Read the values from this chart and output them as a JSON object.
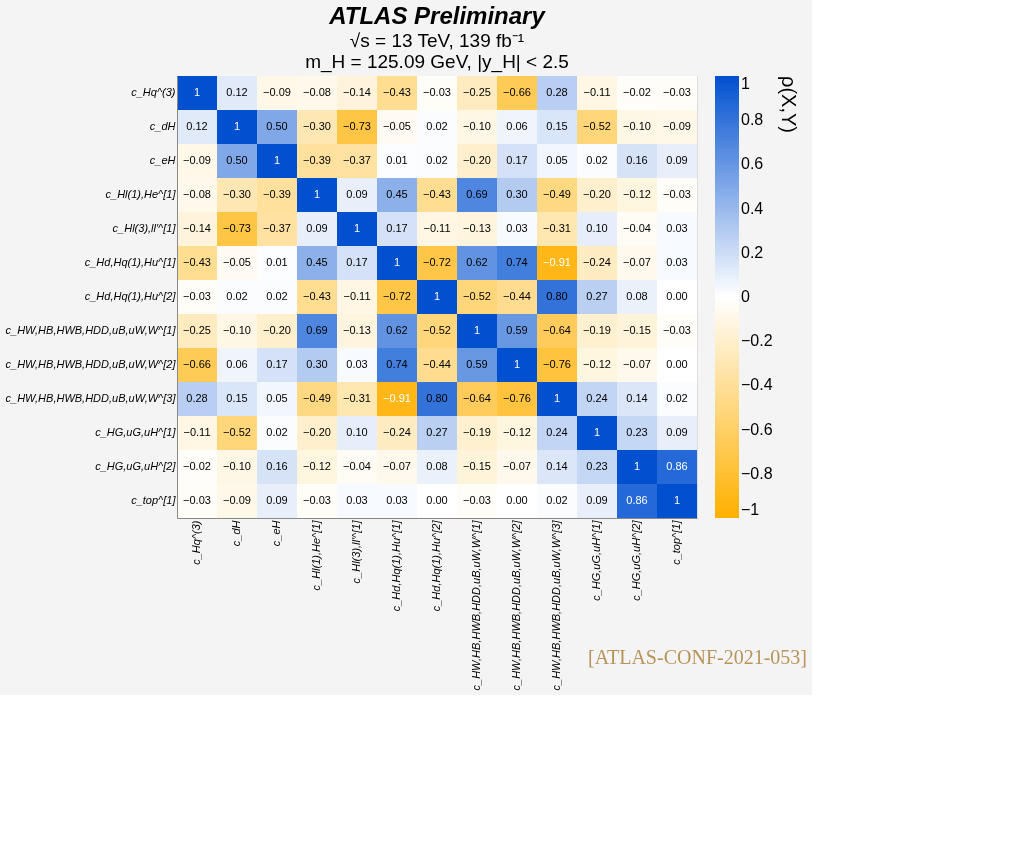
{
  "chart_data": {
    "type": "heatmap",
    "title": "ATLAS Preliminary",
    "subtitle": [
      "√s = 13 TeV, 139 fb⁻¹",
      "m_H = 125.09 GeV, |y_H| < 2.5"
    ],
    "clabel": "ρ(X,Y)",
    "annotations": [
      "[ATLAS-CONF-2021-053]"
    ],
    "categories": [
      "c_Hq^(3)",
      "c_dH",
      "c_eH",
      "c_Hl(1),He^[1]",
      "c_Hl(3),ll'^[1]",
      "c_Hd,Hq(1),Hu^[1]",
      "c_Hd,Hq(1),Hu^[2]",
      "c_HW,HB,HWB,HDD,uB,uW,W^[1]",
      "c_HW,HB,HWB,HDD,uB,uW,W^[2]",
      "c_HW,HB,HWB,HDD,uB,uW,W^[3]",
      "c_HG,uG,uH^[1]",
      "c_HG,uG,uH^[2]",
      "c_top^[1]"
    ],
    "y_categories": [
      "c_Hq^(3)",
      "c_dH",
      "c_eH",
      "c_Hl(1),He^[1]",
      "c_Hl(3),ll'^[1]",
      "c_Hd,Hq(1),Hu^[1]",
      "c_Hd,Hq(1),Hu^[2]",
      "c_HW,HB,HWB,HDD,uB,uW,W^[1]",
      "c_HW,HB,HWB,HDD,uB,uW,W^[2]",
      "c_HW,HB,HWB,HDD,uB,uW,W^[3]",
      "c_HG,uG,uH^[1]",
      "c_HG,uG,uH^[2]",
      "c_top^[1]"
    ],
    "cells": [
      [
        1,
        0.12,
        -0.09,
        -0.08,
        -0.14,
        -0.43,
        -0.03,
        -0.25,
        -0.66,
        0.28,
        -0.11,
        -0.02,
        -0.03
      ],
      [
        0.12,
        1,
        0.5,
        -0.3,
        -0.73,
        -0.05,
        0.02,
        -0.1,
        0.06,
        0.15,
        -0.52,
        -0.1,
        -0.09
      ],
      [
        -0.09,
        0.5,
        1,
        -0.39,
        -0.37,
        0.01,
        0.02,
        -0.2,
        0.17,
        0.05,
        0.02,
        0.16,
        0.09
      ],
      [
        -0.08,
        -0.3,
        -0.39,
        1,
        0.09,
        0.45,
        -0.43,
        0.69,
        0.3,
        -0.49,
        -0.2,
        -0.12,
        -0.03
      ],
      [
        -0.14,
        -0.73,
        -0.37,
        0.09,
        1,
        0.17,
        -0.11,
        -0.13,
        0.03,
        -0.31,
        0.1,
        -0.04,
        0.03
      ],
      [
        -0.43,
        -0.05,
        0.01,
        0.45,
        0.17,
        1,
        -0.72,
        0.62,
        0.74,
        -0.91,
        -0.24,
        -0.07,
        0.03
      ],
      [
        -0.03,
        0.02,
        0.02,
        -0.43,
        -0.11,
        -0.72,
        1,
        -0.52,
        -0.44,
        0.8,
        0.27,
        0.08,
        0.0
      ],
      [
        -0.25,
        -0.1,
        -0.2,
        0.69,
        -0.13,
        0.62,
        -0.52,
        1,
        0.59,
        -0.64,
        -0.19,
        -0.15,
        -0.03
      ],
      [
        -0.66,
        0.06,
        0.17,
        0.3,
        0.03,
        0.74,
        -0.44,
        0.59,
        1,
        -0.76,
        -0.12,
        -0.07,
        0.0
      ],
      [
        0.28,
        0.15,
        0.05,
        -0.49,
        -0.31,
        -0.91,
        0.8,
        -0.64,
        -0.76,
        1,
        0.24,
        0.14,
        0.02
      ],
      [
        -0.11,
        -0.52,
        0.02,
        -0.2,
        0.1,
        -0.24,
        0.27,
        -0.19,
        -0.12,
        0.24,
        1,
        0.23,
        0.09
      ],
      [
        -0.02,
        -0.1,
        0.16,
        -0.12,
        -0.04,
        -0.07,
        0.08,
        -0.15,
        -0.07,
        0.14,
        0.23,
        1,
        0.86
      ],
      [
        -0.03,
        -0.09,
        0.09,
        -0.03,
        0.03,
        0.03,
        0.0,
        -0.03,
        0.0,
        0.02,
        0.09,
        0.86,
        1
      ]
    ],
    "cell_labels": [
      [
        "1",
        "0.12",
        "−0.09",
        "−0.08",
        "−0.14",
        "−0.43",
        "−0.03",
        "−0.25",
        "−0.66",
        "0.28",
        "−0.11",
        "−0.02",
        "−0.03"
      ],
      [
        "0.12",
        "1",
        "0.50",
        "−0.30",
        "−0.73",
        "−0.05",
        "0.02",
        "−0.10",
        "0.06",
        "0.15",
        "−0.52",
        "−0.10",
        "−0.09"
      ],
      [
        "−0.09",
        "0.50",
        "1",
        "−0.39",
        "−0.37",
        "0.01",
        "0.02",
        "−0.20",
        "0.17",
        "0.05",
        "0.02",
        "0.16",
        "0.09"
      ],
      [
        "−0.08",
        "−0.30",
        "−0.39",
        "1",
        "0.09",
        "0.45",
        "−0.43",
        "0.69",
        "0.30",
        "−0.49",
        "−0.20",
        "−0.12",
        "−0.03"
      ],
      [
        "−0.14",
        "−0.73",
        "−0.37",
        "0.09",
        "1",
        "0.17",
        "−0.11",
        "−0.13",
        "0.03",
        "−0.31",
        "0.10",
        "−0.04",
        "0.03"
      ],
      [
        "−0.43",
        "−0.05",
        "0.01",
        "0.45",
        "0.17",
        "1",
        "−0.72",
        "0.62",
        "0.74",
        "−0.91",
        "−0.24",
        "−0.07",
        "0.03"
      ],
      [
        "−0.03",
        "0.02",
        "0.02",
        "−0.43",
        "−0.11",
        "−0.72",
        "1",
        "−0.52",
        "−0.44",
        "0.80",
        "0.27",
        "0.08",
        "0.00"
      ],
      [
        "−0.25",
        "−0.10",
        "−0.20",
        "0.69",
        "−0.13",
        "0.62",
        "−0.52",
        "1",
        "0.59",
        "−0.64",
        "−0.19",
        "−0.15",
        "−0.03"
      ],
      [
        "−0.66",
        "0.06",
        "0.17",
        "0.30",
        "0.03",
        "0.74",
        "−0.44",
        "0.59",
        "1",
        "−0.76",
        "−0.12",
        "−0.07",
        "0.00"
      ],
      [
        "0.28",
        "0.15",
        "0.05",
        "−0.49",
        "−0.31",
        "−0.91",
        "0.80",
        "−0.64",
        "−0.76",
        "1",
        "0.24",
        "0.14",
        "0.02"
      ],
      [
        "−0.11",
        "−0.52",
        "0.02",
        "−0.20",
        "0.10",
        "−0.24",
        "0.27",
        "−0.19",
        "−0.12",
        "0.24",
        "1",
        "0.23",
        "0.09"
      ],
      [
        "−0.02",
        "−0.10",
        "0.16",
        "−0.12",
        "−0.04",
        "−0.07",
        "0.08",
        "−0.15",
        "−0.07",
        "0.14",
        "0.23",
        "1",
        "0.86"
      ],
      [
        "−0.03",
        "−0.09",
        "0.09",
        "−0.03",
        "0.03",
        "0.03",
        "0.00",
        "−0.03",
        "0.00",
        "0.02",
        "0.09",
        "0.86",
        "1"
      ]
    ],
    "clim": [
      -1,
      1
    ],
    "cticks": [
      -1,
      -0.8,
      -0.6,
      -0.4,
      -0.2,
      0,
      0.2,
      0.4,
      0.6,
      0.8,
      1
    ]
  }
}
